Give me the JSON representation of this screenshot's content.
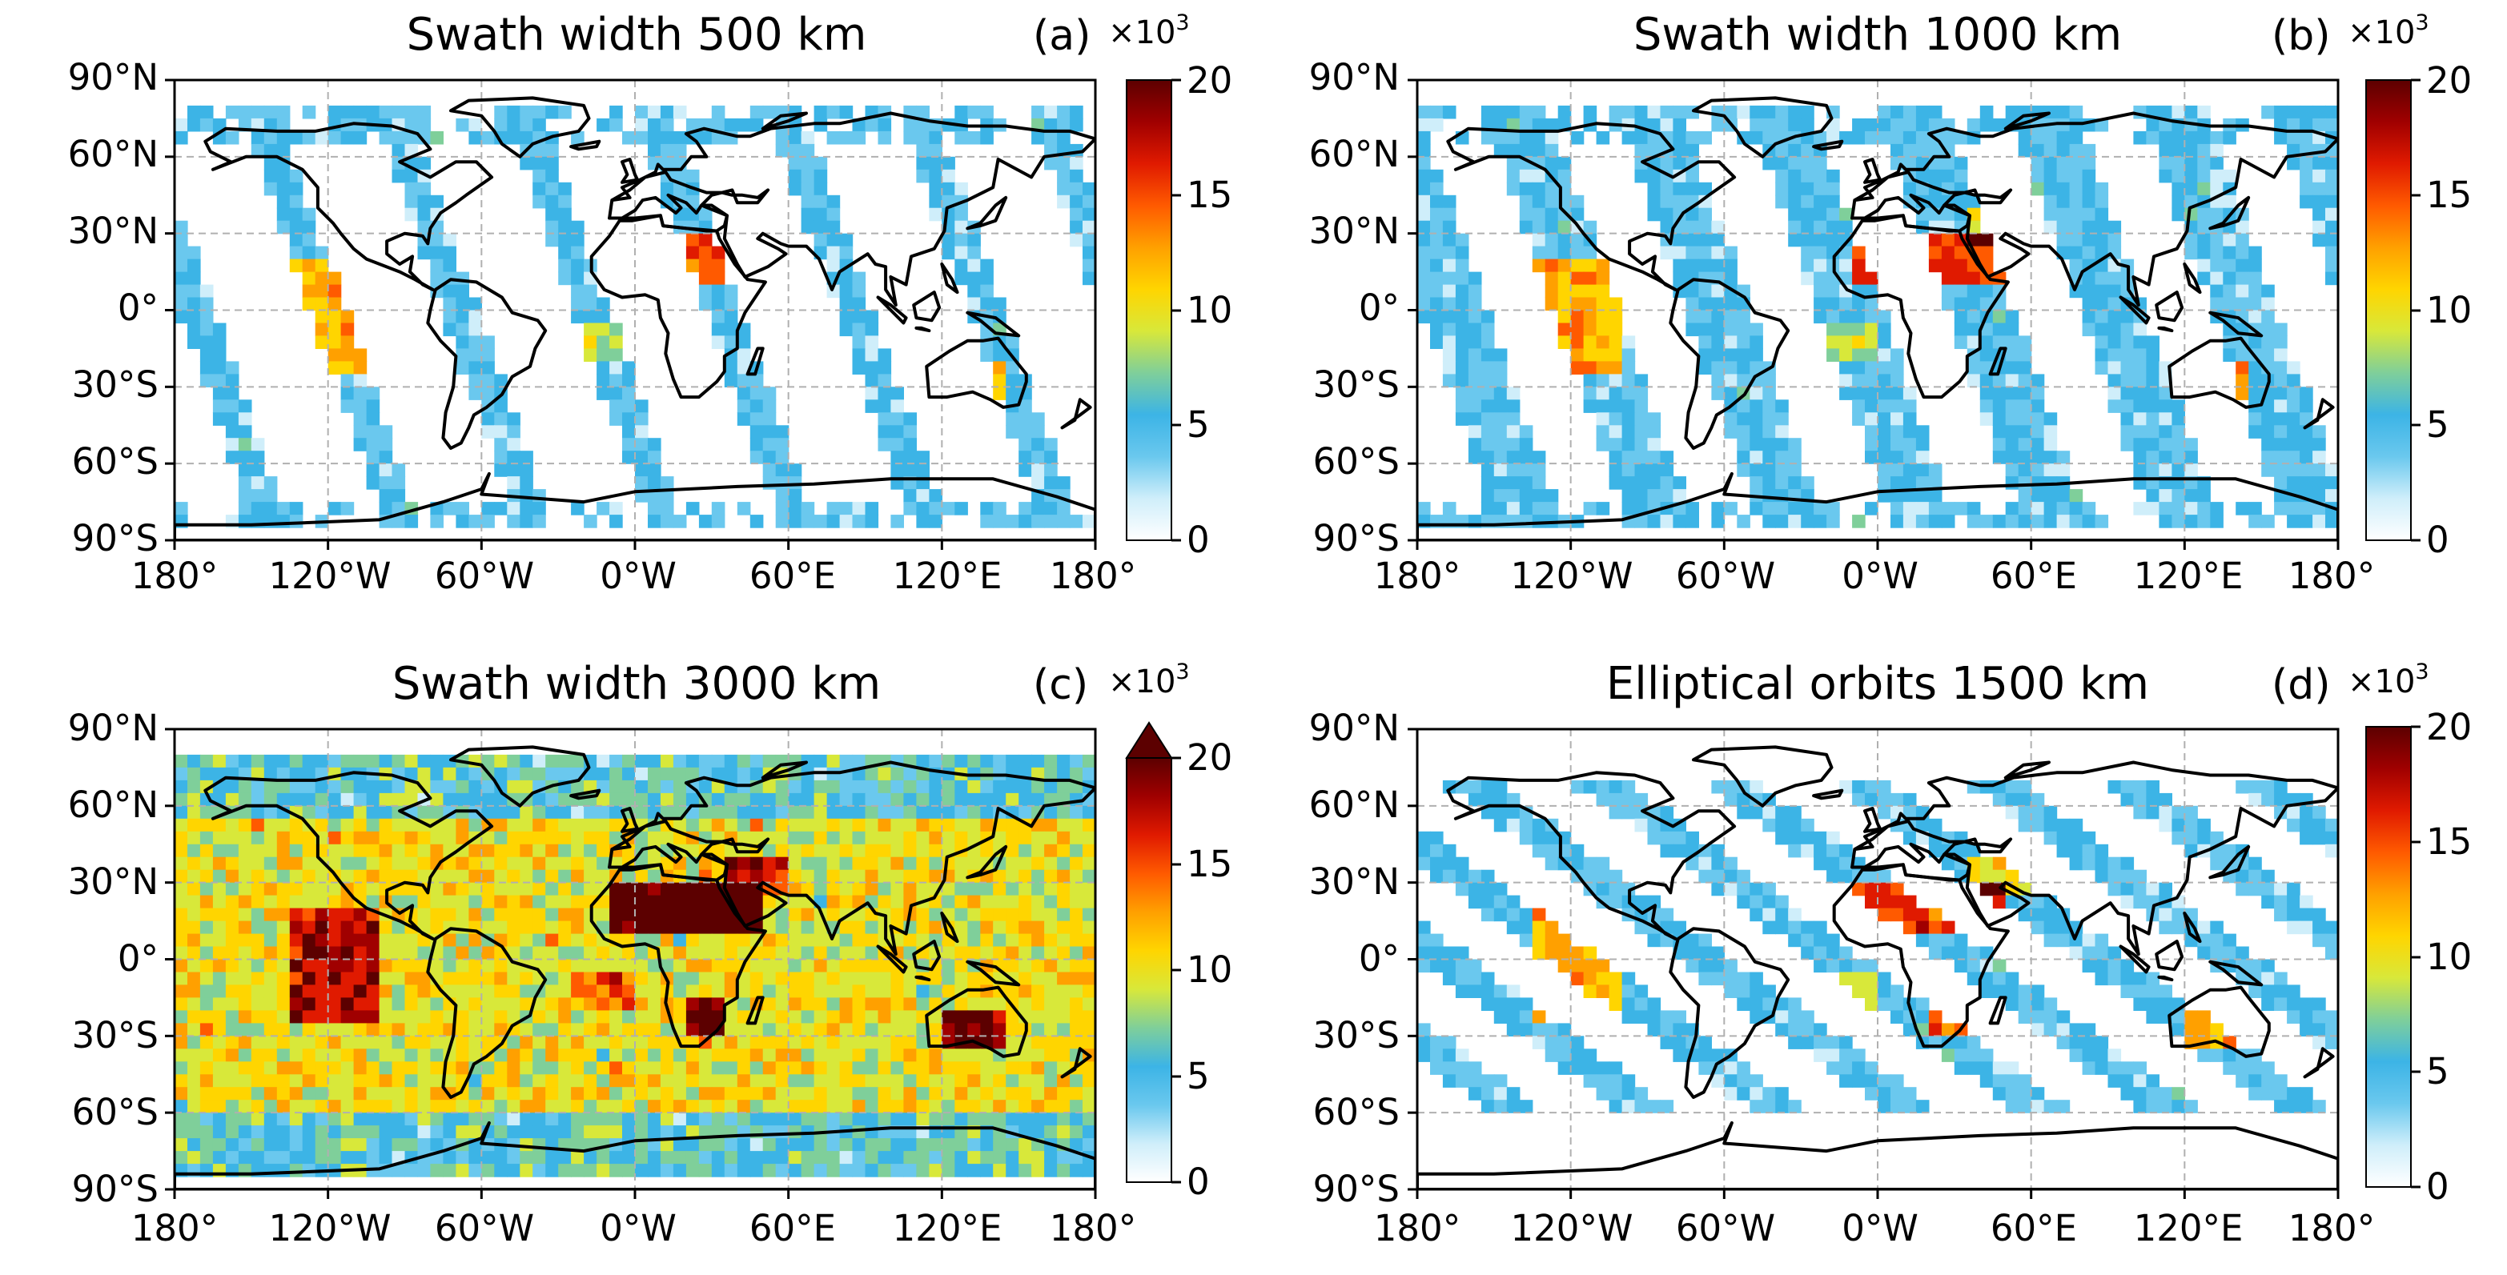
{
  "figure": {
    "panels": [
      {
        "id": "a",
        "title": "Swath width 500 km",
        "label": "(a)",
        "multiplier": "×10",
        "exponent": "3",
        "extend_max": false,
        "pattern": {
          "kind": "vertical",
          "swaths": 7,
          "swath_width_deg": 14
        }
      },
      {
        "id": "b",
        "title": "Swath width 1000 km",
        "label": "(b)",
        "multiplier": "×10",
        "exponent": "3",
        "extend_max": false,
        "pattern": {
          "kind": "vertical",
          "swaths": 7,
          "swath_width_deg": 26
        }
      },
      {
        "id": "c",
        "title": "Swath width 3000 km",
        "label": "(c)",
        "multiplier": "×10",
        "exponent": "3",
        "extend_max": true,
        "pattern": {
          "kind": "full",
          "swaths": 7,
          "swath_width_deg": 51
        }
      },
      {
        "id": "d",
        "title": "Elliptical orbits 1500 km",
        "label": "(d)",
        "multiplier": "×10",
        "exponent": "3",
        "extend_max": false,
        "pattern": {
          "kind": "diagonal",
          "swaths": 7,
          "swath_width_deg": 22
        }
      }
    ],
    "lat_ticks": [
      "90°N",
      "60°N",
      "30°N",
      "0°",
      "30°S",
      "60°S",
      "90°S"
    ],
    "lat_values": [
      90,
      60,
      30,
      0,
      -30,
      -60,
      -90
    ],
    "lon_ticks": [
      "180°",
      "120°W",
      "60°W",
      "0°W",
      "60°E",
      "120°E",
      "180°"
    ],
    "lon_values": [
      -180,
      -120,
      -60,
      0,
      60,
      120,
      180
    ],
    "colorbar": {
      "ticks": [
        "0",
        "5",
        "10",
        "15",
        "20"
      ],
      "values": [
        0,
        5,
        10,
        15,
        20
      ],
      "vmin": 0,
      "vmax": 20,
      "colormap": [
        "#ffffff",
        "#cfeefa",
        "#6ac8ee",
        "#3cb4e6",
        "#7fcf9a",
        "#d8e83a",
        "#ffd500",
        "#ffa000",
        "#ff5a00",
        "#e01a00",
        "#a00000",
        "#5c0000"
      ]
    },
    "colors": {
      "land_outline": "#000000",
      "grid": "#b0b0b0"
    }
  }
}
